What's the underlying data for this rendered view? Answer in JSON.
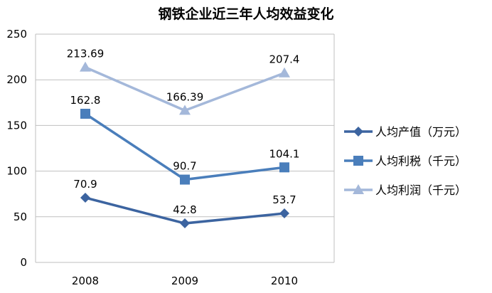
{
  "chart_data": {
    "type": "line",
    "title": "钢铁企业近三年人均效益变化",
    "xlabel": "",
    "ylabel": "",
    "categories": [
      "2008",
      "2009",
      "2010"
    ],
    "ylim": [
      0,
      250
    ],
    "yticks": [
      "0",
      "50",
      "100",
      "150",
      "200",
      "250"
    ],
    "grid": true,
    "legend_position": "right",
    "series": [
      {
        "name": "人均产值（万元）",
        "values": [
          70.9,
          42.8,
          53.7
        ],
        "labels": [
          "70.9",
          "42.8",
          "53.7"
        ],
        "color": "#3C64A0",
        "marker": "diamond"
      },
      {
        "name": "人均利税（千元）",
        "values": [
          162.8,
          90.7,
          104.1
        ],
        "labels": [
          "162.8",
          "90.7",
          "104.1"
        ],
        "color": "#4A7EBB",
        "marker": "square"
      },
      {
        "name": "人均利润（千元）",
        "values": [
          213.69,
          166.39,
          207.4
        ],
        "labels": [
          "213.69",
          "166.39",
          "207.4"
        ],
        "color": "#A4B8DA",
        "marker": "triangle"
      }
    ]
  }
}
